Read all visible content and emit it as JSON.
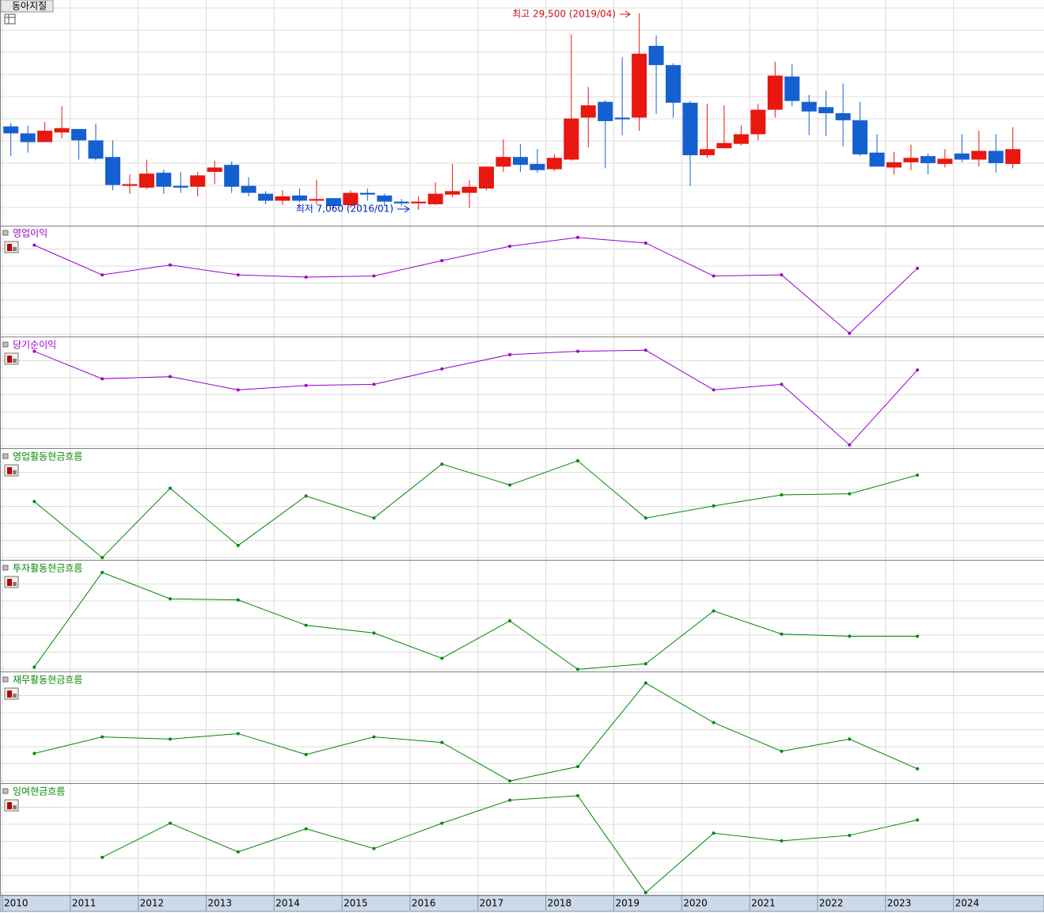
{
  "chart_data": [
    {
      "type": "candlestick",
      "title": "동아지질",
      "x": [
        2010,
        2010.25,
        2010.5,
        2010.75,
        2011,
        2011.25,
        2011.5,
        2011.75,
        2012,
        2012.25,
        2012.5,
        2012.75,
        2013,
        2013.25,
        2013.5,
        2013.75,
        2014,
        2014.25,
        2014.5,
        2014.75,
        2015,
        2015.25,
        2015.5,
        2015.75,
        2016,
        2016.25,
        2016.5,
        2016.75,
        2017,
        2017.25,
        2017.5,
        2017.75,
        2018,
        2018.25,
        2018.5,
        2018.75,
        2019,
        2019.25,
        2019.5,
        2019.75,
        2020,
        2020.25,
        2020.5,
        2020.75,
        2021,
        2021.25,
        2021.5,
        2021.75,
        2022,
        2022.25,
        2022.5,
        2022.75,
        2023,
        2023.25,
        2023.5,
        2023.75,
        2024,
        2024.25,
        2024.5,
        2024.75
      ],
      "open": [
        16600,
        15800,
        14800,
        15900,
        16300,
        15000,
        13100,
        9800,
        9600,
        11300,
        9800,
        9700,
        11400,
        12200,
        9800,
        8900,
        8100,
        8700,
        8100,
        8400,
        7600,
        9000,
        8700,
        8000,
        7800,
        7700,
        8800,
        9000,
        9500,
        12000,
        13100,
        12300,
        11700,
        12800,
        17600,
        19400,
        17600,
        17600,
        25800,
        23600,
        19300,
        13300,
        14100,
        14600,
        15700,
        18500,
        22300,
        19400,
        18800,
        18100,
        17300,
        13600,
        11900,
        12500,
        13200,
        12300,
        13500,
        12800,
        13800,
        12300
      ],
      "high": [
        17000,
        16700,
        17100,
        18900,
        16300,
        16900,
        15000,
        11100,
        12800,
        11700,
        11400,
        11400,
        12700,
        12600,
        10800,
        9200,
        9300,
        9500,
        10500,
        8400,
        9300,
        9500,
        8900,
        8300,
        8600,
        10200,
        12300,
        10500,
        12000,
        15100,
        14600,
        14000,
        13400,
        27100,
        21100,
        19600,
        24500,
        29500,
        27000,
        23800,
        19500,
        19200,
        19000,
        16700,
        19200,
        24000,
        23700,
        20200,
        20700,
        21500,
        19400,
        15700,
        13700,
        14500,
        13500,
        14000,
        15700,
        16100,
        15700,
        16500
      ],
      "low": [
        13200,
        13600,
        14800,
        15200,
        12800,
        12700,
        9300,
        8900,
        9400,
        8900,
        9000,
        8600,
        10000,
        9000,
        8600,
        7700,
        7600,
        7900,
        7700,
        7300,
        7300,
        8100,
        7500,
        7500,
        7060,
        7600,
        8500,
        7300,
        9300,
        11400,
        11400,
        11300,
        11500,
        12700,
        14200,
        11800,
        15600,
        16100,
        18000,
        17600,
        9800,
        13000,
        14100,
        14400,
        15000,
        17600,
        18900,
        15600,
        15500,
        14300,
        13200,
        12000,
        11100,
        11600,
        11100,
        11900,
        12500,
        12000,
        11300,
        11800
      ],
      "close": [
        15800,
        14800,
        16100,
        16400,
        15000,
        12900,
        9900,
        10000,
        11200,
        9700,
        9600,
        11000,
        11900,
        9700,
        9000,
        8100,
        8600,
        8100,
        8300,
        7500,
        9000,
        8800,
        8000,
        7800,
        8000,
        8900,
        9200,
        9700,
        12000,
        13100,
        12200,
        11600,
        13000,
        17500,
        19000,
        17200,
        17400,
        24900,
        23600,
        19300,
        13300,
        14000,
        14700,
        15700,
        18500,
        22400,
        19500,
        18300,
        18100,
        17300,
        13400,
        12000,
        12500,
        13000,
        12400,
        12900,
        12800,
        13800,
        12400,
        14000
      ],
      "up_color": "#e8170f",
      "down_color": "#1560d0",
      "xlim": [
        2010,
        2025.24
      ],
      "ylim": [
        5250,
        31040
      ],
      "xticks": [
        2010,
        2011,
        2012,
        2013,
        2014,
        2015,
        2016,
        2017,
        2018,
        2019,
        2020,
        2021,
        2022,
        2023,
        2024
      ],
      "annotations": [
        "최고 29,500 (2019/04)",
        "최저 7,060 (2016/01)"
      ]
    },
    {
      "type": "line",
      "title": "영업이익",
      "color": "#9900cc",
      "x": [
        2010,
        2011,
        2012,
        2013,
        2014,
        2015,
        2016,
        2017,
        2018,
        2019,
        2020,
        2021,
        2022,
        2023
      ],
      "values": [
        83,
        56,
        65,
        56,
        54,
        55,
        69,
        82,
        90,
        85,
        55,
        56,
        3,
        62
      ],
      "xlim": [
        2009.53,
        2024.77
      ],
      "ylim": [
        0,
        100
      ]
    },
    {
      "type": "line",
      "title": "당기순이익",
      "color": "#9900cc",
      "x": [
        2010,
        2011,
        2012,
        2013,
        2014,
        2015,
        2016,
        2017,
        2018,
        2019,
        2020,
        2021,
        2022,
        2023
      ],
      "values": [
        88,
        63,
        65,
        53,
        57,
        58,
        72,
        85,
        88,
        89,
        53,
        58,
        3,
        71
      ],
      "xlim": [
        2009.53,
        2024.77
      ],
      "ylim": [
        0,
        100
      ]
    },
    {
      "type": "line",
      "title": "영업활동현금흐름",
      "color": "#008800",
      "x": [
        2010,
        2011,
        2012,
        2013,
        2014,
        2015,
        2016,
        2017,
        2018,
        2019,
        2020,
        2021,
        2022,
        2023
      ],
      "values": [
        53,
        2,
        65,
        13,
        58,
        38,
        87,
        68,
        90,
        38,
        49,
        59,
        60,
        77
      ],
      "xlim": [
        2009.53,
        2024.77
      ],
      "ylim": [
        0,
        100
      ]
    },
    {
      "type": "line",
      "title": "투자활동현금흐름",
      "color": "#008800",
      "x": [
        2010,
        2011,
        2012,
        2013,
        2014,
        2015,
        2016,
        2017,
        2018,
        2019,
        2020,
        2021,
        2022,
        2023
      ],
      "values": [
        4,
        90,
        66,
        65,
        42,
        35,
        12,
        46,
        2,
        7,
        55,
        34,
        32,
        32
      ],
      "xlim": [
        2009.53,
        2024.77
      ],
      "ylim": [
        0,
        100
      ]
    },
    {
      "type": "line",
      "title": "재무활동현금흐름",
      "color": "#008800",
      "x": [
        2010,
        2011,
        2012,
        2013,
        2014,
        2015,
        2016,
        2017,
        2018,
        2019,
        2020,
        2021,
        2022,
        2023
      ],
      "values": [
        27,
        42,
        40,
        45,
        26,
        42,
        37,
        2,
        15,
        91,
        55,
        29,
        40,
        13
      ],
      "xlim": [
        2009.53,
        2024.77
      ],
      "ylim": [
        0,
        100
      ]
    },
    {
      "type": "line",
      "title": "잉여현금흐름",
      "color": "#008800",
      "x": [
        2010,
        2011,
        2012,
        2013,
        2014,
        2015,
        2016,
        2017,
        2018,
        2019,
        2020,
        2021,
        2022,
        2023
      ],
      "values": [
        null,
        34,
        65,
        39,
        60,
        42,
        65,
        86,
        90,
        2,
        56,
        49,
        54,
        68
      ],
      "xlim": [
        2009.53,
        2024.77
      ],
      "ylim": [
        0,
        100
      ]
    }
  ]
}
